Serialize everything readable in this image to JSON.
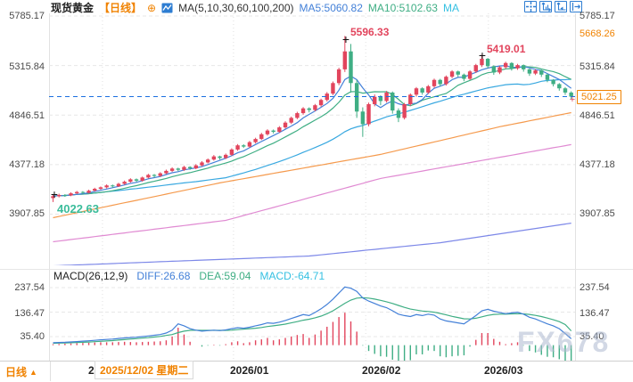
{
  "header": {
    "symbol": "现货黄金",
    "period_tag": "【日线】",
    "ma_label": "MA(5,10,30,60,100,200)",
    "ma5": "MA5:5060.82",
    "ma10": "MA10:5102.63",
    "ma_more": "MA"
  },
  "icons": {
    "collapse_glyph": "⊕"
  },
  "axis": {
    "main": [
      "5785.17",
      "5315.84",
      "4846.51",
      "4377.18",
      "3907.85"
    ],
    "session_high": "5668.26",
    "last_price": "5021.25",
    "macd": [
      "237.54",
      "136.47",
      "35.40"
    ]
  },
  "annotations": {
    "high1": "5596.33",
    "high2": "5419.01",
    "low": "4022.63"
  },
  "macd_header": {
    "label": "MACD(26,12,9)",
    "diff": "DIFF:26.68",
    "dea": "DEA:59.04",
    "macd": "MACD:-64.71"
  },
  "time_axis": {
    "ticks": [
      "2025/12",
      "2026/01",
      "2026/02",
      "2026/03"
    ],
    "tooltip": "2025/12/02 星期二",
    "period": "日线"
  },
  "watermark": "FX678",
  "colors": {
    "accent_orange": "#f08200",
    "up_red": "#e2455d",
    "down_green": "#3fae84",
    "diff_blue": "#4380d8",
    "dea_green": "#3fae84",
    "macd_cyan": "#35c0e2",
    "price_line_blue": "#1a6fe0"
  },
  "chart_data": {
    "type": "candlestick+macd",
    "title": "现货黄金 日线",
    "month_boundaries": [
      8.3,
      30.3,
      52.5,
      73.1
    ],
    "main": {
      "ylim": [
        3907.85,
        5785.17
      ],
      "y_gridlines": [
        5785.17,
        5315.84,
        4846.51,
        4377.18,
        3907.85
      ],
      "current_price": 5021.25,
      "marked_high_1": 5596.33,
      "marked_high_2": 5419.01,
      "marked_low": 4022.63,
      "up_color": "#e2455d",
      "down_color": "#3fae84",
      "ma_colors": {
        "ma5": "#4380d8",
        "ma10": "#3fae84",
        "ma30": "#38a8e0",
        "ma60": "#f59a4d",
        "ma100": "#e08ad2",
        "ma200": "#7d88e8"
      },
      "ma_anchors": {
        "ma60": [
          [
            0,
            3874
          ],
          [
            28,
            4204
          ],
          [
            55,
            4474
          ],
          [
            75,
            4736
          ],
          [
            87,
            4870
          ]
        ],
        "ma100": [
          [
            0,
            3646
          ],
          [
            29,
            3849
          ],
          [
            55,
            4246
          ],
          [
            87,
            4567
          ]
        ],
        "ma200": [
          [
            0,
            3418
          ],
          [
            43,
            3511
          ],
          [
            65,
            3637
          ],
          [
            87,
            3823
          ]
        ]
      },
      "candles": [
        [
          4060,
          4092,
          4022.63,
          4078
        ],
        [
          4078,
          4102,
          4066,
          4090
        ],
        [
          4090,
          4098,
          4072,
          4085
        ],
        [
          4085,
          4115,
          4078,
          4105
        ],
        [
          4105,
          4128,
          4098,
          4118
        ],
        [
          4118,
          4126,
          4096,
          4110
        ],
        [
          4110,
          4140,
          4104,
          4130
        ],
        [
          4130,
          4158,
          4122,
          4148
        ],
        [
          4148,
          4170,
          4138,
          4162
        ],
        [
          4162,
          4190,
          4152,
          4180
        ],
        [
          4180,
          4188,
          4158,
          4172
        ],
        [
          4172,
          4205,
          4165,
          4195
        ],
        [
          4195,
          4226,
          4186,
          4215
        ],
        [
          4215,
          4248,
          4206,
          4238
        ],
        [
          4238,
          4246,
          4212,
          4225
        ],
        [
          4225,
          4264,
          4216,
          4255
        ],
        [
          4255,
          4290,
          4246,
          4280
        ],
        [
          4280,
          4288,
          4255,
          4270
        ],
        [
          4270,
          4305,
          4260,
          4295
        ],
        [
          4295,
          4330,
          4286,
          4318
        ],
        [
          4318,
          4352,
          4308,
          4340
        ],
        [
          4340,
          4348,
          4315,
          4328
        ],
        [
          4328,
          4366,
          4318,
          4355
        ],
        [
          4355,
          4362,
          4328,
          4342
        ],
        [
          4342,
          4382,
          4334,
          4370
        ],
        [
          4370,
          4410,
          4360,
          4398
        ],
        [
          4398,
          4436,
          4388,
          4425
        ],
        [
          4425,
          4468,
          4415,
          4455
        ],
        [
          4455,
          4462,
          4425,
          4440
        ],
        [
          4440,
          4482,
          4430,
          4470
        ],
        [
          4470,
          4532,
          4460,
          4520
        ],
        [
          4520,
          4572,
          4508,
          4560
        ],
        [
          4560,
          4570,
          4535,
          4548
        ],
        [
          4548,
          4602,
          4538,
          4590
        ],
        [
          4590,
          4632,
          4578,
          4620
        ],
        [
          4620,
          4678,
          4610,
          4665
        ],
        [
          4665,
          4712,
          4652,
          4700
        ],
        [
          4700,
          4710,
          4672,
          4688
        ],
        [
          4688,
          4742,
          4678,
          4730
        ],
        [
          4730,
          4788,
          4718,
          4775
        ],
        [
          4775,
          4832,
          4762,
          4820
        ],
        [
          4820,
          4878,
          4808,
          4865
        ],
        [
          4865,
          4922,
          4850,
          4910
        ],
        [
          4910,
          4920,
          4872,
          4895
        ],
        [
          4895,
          4952,
          4882,
          4940
        ],
        [
          4940,
          5002,
          4926,
          4990
        ],
        [
          4990,
          5065,
          4975,
          5050
        ],
        [
          5050,
          5165,
          5035,
          5150
        ],
        [
          5150,
          5295,
          5130,
          5280
        ],
        [
          5280,
          5596.33,
          5255,
          5450
        ],
        [
          5450,
          5520,
          5060,
          5150
        ],
        [
          5150,
          5180,
          4820,
          4880
        ],
        [
          4880,
          4920,
          4640,
          4760
        ],
        [
          4760,
          4965,
          4740,
          4950
        ],
        [
          4950,
          5042,
          4930,
          5020
        ],
        [
          5020,
          5035,
          4940,
          4980
        ],
        [
          4980,
          5075,
          4965,
          5060
        ],
        [
          5060,
          5070,
          4860,
          4890
        ],
        [
          4890,
          4910,
          4780,
          4820
        ],
        [
          4820,
          4962,
          4805,
          4950
        ],
        [
          4950,
          5052,
          4935,
          5040
        ],
        [
          5040,
          5112,
          5022,
          5100
        ],
        [
          5100,
          5110,
          5040,
          5060
        ],
        [
          5060,
          5132,
          5046,
          5120
        ],
        [
          5120,
          5192,
          5105,
          5180
        ],
        [
          5180,
          5190,
          5118,
          5140
        ],
        [
          5140,
          5222,
          5126,
          5210
        ],
        [
          5210,
          5272,
          5196,
          5260
        ],
        [
          5260,
          5268,
          5208,
          5230
        ],
        [
          5230,
          5240,
          5168,
          5190
        ],
        [
          5190,
          5272,
          5178,
          5260
        ],
        [
          5260,
          5332,
          5245,
          5320
        ],
        [
          5320,
          5419.01,
          5302,
          5380
        ],
        [
          5380,
          5388,
          5288,
          5310
        ],
        [
          5310,
          5318,
          5228,
          5250
        ],
        [
          5250,
          5312,
          5235,
          5300
        ],
        [
          5300,
          5352,
          5285,
          5340
        ],
        [
          5340,
          5348,
          5268,
          5290
        ],
        [
          5290,
          5332,
          5275,
          5320
        ],
        [
          5320,
          5326,
          5258,
          5280
        ],
        [
          5280,
          5288,
          5218,
          5240
        ],
        [
          5240,
          5282,
          5226,
          5270
        ],
        [
          5270,
          5276,
          5208,
          5230
        ],
        [
          5230,
          5240,
          5158,
          5180
        ],
        [
          5180,
          5188,
          5118,
          5140
        ],
        [
          5140,
          5150,
          5078,
          5100
        ],
        [
          5100,
          5112,
          5038,
          5060
        ],
        [
          5060,
          5072,
          4998,
          5021.25
        ]
      ]
    },
    "macd": {
      "params": "26,12,9",
      "y_gridlines": [
        237.54,
        136.47,
        35.4
      ],
      "last_diff": 26.68,
      "last_dea": 59.04,
      "last_macd": -64.71,
      "diff": [
        10,
        11,
        12,
        13.5,
        15,
        16.5,
        18,
        20,
        22,
        23.5,
        25,
        27.5,
        30,
        31.5,
        33,
        35.5,
        38,
        41,
        44,
        50,
        62,
        88,
        80,
        68,
        62,
        58,
        60,
        62,
        60,
        63,
        68,
        72,
        70,
        74,
        80,
        85,
        92,
        90,
        95,
        102,
        110,
        118,
        126,
        122,
        135,
        150,
        168,
        190,
        215,
        240,
        235,
        222,
        195,
        182,
        172,
        162,
        155,
        142,
        128,
        122,
        118,
        126,
        122,
        128,
        124,
        108,
        100,
        96,
        92,
        88,
        105,
        122,
        142,
        148,
        140,
        135,
        130,
        133,
        136,
        128,
        115,
        108,
        98,
        88,
        80,
        68,
        48,
        26.68
      ],
      "dea": [
        8,
        8.5,
        9,
        10,
        11,
        12,
        13,
        14.5,
        16,
        17.5,
        19,
        21,
        23,
        25,
        27,
        29,
        31,
        33.5,
        36,
        40,
        44,
        52,
        58,
        61,
        62,
        61,
        61,
        61,
        61,
        61,
        62,
        64,
        66,
        68,
        70,
        73,
        77,
        80,
        83,
        87,
        92,
        97,
        103,
        107,
        113,
        120,
        130,
        142,
        157,
        173,
        186,
        194,
        196,
        194,
        190,
        185,
        179,
        172,
        164,
        156,
        149,
        145,
        141,
        139,
        136,
        131,
        125,
        119,
        114,
        109,
        108,
        111,
        117,
        123,
        127,
        128,
        128,
        129,
        130,
        129,
        127,
        123,
        118,
        112,
        105,
        97,
        85,
        59.04
      ]
    }
  }
}
